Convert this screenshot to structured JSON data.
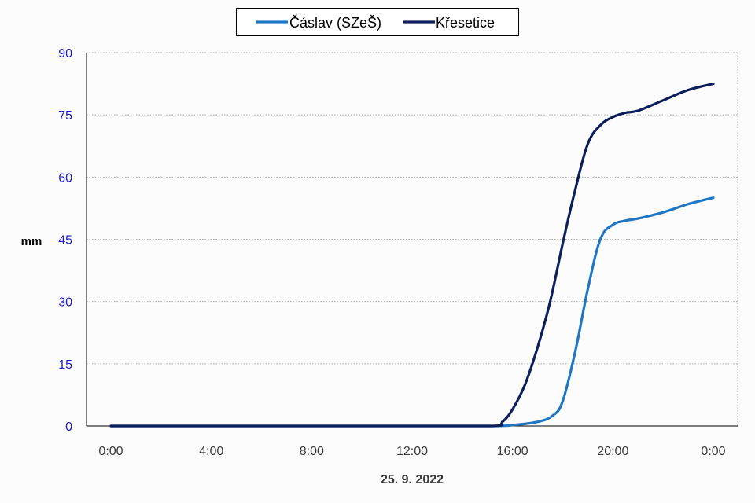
{
  "chart_data": {
    "type": "line",
    "xlabel": "25. 9. 2022",
    "ylabel": "mm",
    "x_ticks": [
      "0:00",
      "4:00",
      "8:00",
      "12:00",
      "16:00",
      "20:00",
      "0:00"
    ],
    "x_range_hours": [
      0,
      24
    ],
    "ylim": [
      0,
      90
    ],
    "y_ticks": [
      0,
      15,
      30,
      45,
      60,
      75,
      90
    ],
    "grid": true,
    "legend_position": "top-center",
    "series": [
      {
        "name": "Čáslav (SZeŠ)",
        "color": "#1f77c4",
        "x": [
          0,
          12,
          15.2,
          16,
          17,
          17.6,
          18,
          18.5,
          19,
          19.5,
          20,
          20.5,
          21,
          22,
          23,
          24
        ],
        "y": [
          0,
          0,
          0,
          0.2,
          1,
          2.5,
          6,
          18,
          33,
          45,
          48.5,
          49.5,
          50,
          51.5,
          53.5,
          55
        ]
      },
      {
        "name": "Křesetice",
        "color": "#0c1f5c",
        "x": [
          0,
          12,
          15.2,
          15.6,
          16,
          16.5,
          17,
          17.5,
          18,
          18.5,
          19,
          19.5,
          20,
          20.5,
          21,
          22,
          23,
          24
        ],
        "y": [
          0,
          0,
          0,
          1,
          4,
          10,
          19,
          30,
          44,
          57,
          68,
          72.5,
          74.5,
          75.5,
          76,
          78.5,
          81,
          82.5
        ]
      }
    ],
    "colors": {
      "axis_text": "#1a1acc",
      "grid": "#a8a8a8"
    }
  }
}
